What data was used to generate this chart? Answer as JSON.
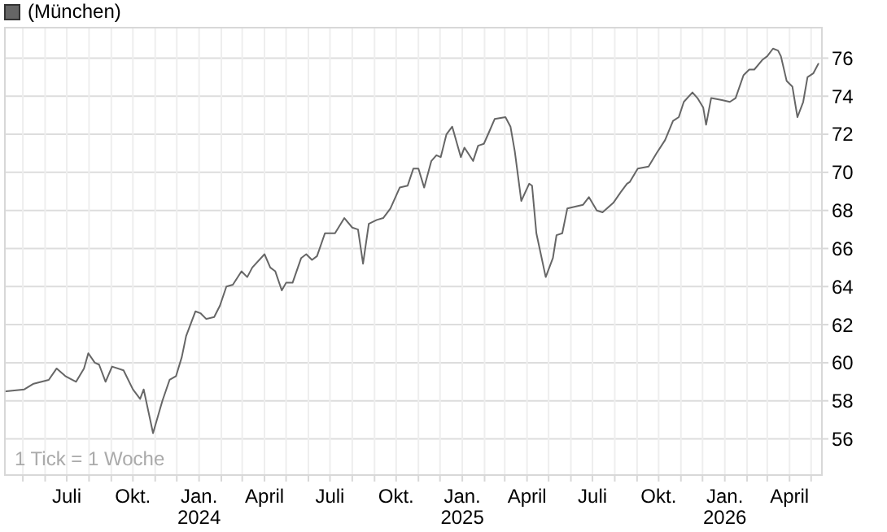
{
  "chart_data": {
    "type": "line",
    "legend": "top left",
    "grid": true,
    "marker": "none",
    "line_style": "solid",
    "annotations": [
      "1 Tick = 1 Woche"
    ],
    "xlim": [
      "2023-04-06",
      "2026-05-16"
    ],
    "ylim": [
      54.1,
      77.6
    ],
    "yticks": [
      56,
      58,
      60,
      62,
      64,
      66,
      68,
      70,
      72,
      74,
      76
    ],
    "xticks": [
      {
        "value": "2023-05-01",
        "label": null
      },
      {
        "value": "2023-06-01",
        "label": null
      },
      {
        "value": "2023-07-01",
        "label": "Juli"
      },
      {
        "value": "2023-08-01",
        "label": null
      },
      {
        "value": "2023-09-01",
        "label": null
      },
      {
        "value": "2023-10-01",
        "label": "Okt."
      },
      {
        "value": "2023-11-01",
        "label": null
      },
      {
        "value": "2023-12-01",
        "label": null
      },
      {
        "value": "2024-01-01",
        "label": "Jan.\n2024"
      },
      {
        "value": "2024-02-01",
        "label": null
      },
      {
        "value": "2024-03-01",
        "label": null
      },
      {
        "value": "2024-04-01",
        "label": "April"
      },
      {
        "value": "2024-05-01",
        "label": null
      },
      {
        "value": "2024-06-01",
        "label": null
      },
      {
        "value": "2024-07-01",
        "label": "Juli"
      },
      {
        "value": "2024-08-01",
        "label": null
      },
      {
        "value": "2024-09-01",
        "label": null
      },
      {
        "value": "2024-10-01",
        "label": "Okt."
      },
      {
        "value": "2024-11-01",
        "label": null
      },
      {
        "value": "2024-12-01",
        "label": null
      },
      {
        "value": "2025-01-01",
        "label": "Jan.\n2025"
      },
      {
        "value": "2025-02-01",
        "label": null
      },
      {
        "value": "2025-03-01",
        "label": null
      },
      {
        "value": "2025-04-01",
        "label": "April"
      },
      {
        "value": "2025-05-01",
        "label": null
      },
      {
        "value": "2025-06-01",
        "label": null
      },
      {
        "value": "2025-07-01",
        "label": "Juli"
      },
      {
        "value": "2025-08-01",
        "label": null
      },
      {
        "value": "2025-09-01",
        "label": null
      },
      {
        "value": "2025-10-01",
        "label": "Okt."
      },
      {
        "value": "2025-11-01",
        "label": null
      },
      {
        "value": "2025-12-01",
        "label": null
      },
      {
        "value": "2026-01-01",
        "label": "Jan.\n2026"
      },
      {
        "value": "2026-02-01",
        "label": null
      },
      {
        "value": "2026-03-01",
        "label": null
      },
      {
        "value": "2026-04-01",
        "label": "April"
      },
      {
        "value": "2026-05-01",
        "label": null
      }
    ],
    "x": [
      "2023-04-08",
      "2023-05-03",
      "2023-05-16",
      "2023-06-06",
      "2023-06-17",
      "2023-06-29",
      "2023-07-14",
      "2023-07-25",
      "2023-07-31",
      "2023-08-09",
      "2023-08-15",
      "2023-08-24",
      "2023-09-02",
      "2023-09-18",
      "2023-10-01",
      "2023-10-11",
      "2023-10-16",
      "2023-10-29",
      "2023-11-11",
      "2023-11-21",
      "2023-11-30",
      "2023-12-08",
      "2023-12-14",
      "2023-12-27",
      "2024-01-03",
      "2024-01-11",
      "2024-01-22",
      "2024-01-30",
      "2024-02-08",
      "2024-02-17",
      "2024-02-29",
      "2024-03-08",
      "2024-03-15",
      "2024-04-01",
      "2024-04-09",
      "2024-04-16",
      "2024-04-25",
      "2024-05-01",
      "2024-05-10",
      "2024-05-22",
      "2024-05-29",
      "2024-06-06",
      "2024-06-13",
      "2024-06-24",
      "2024-07-08",
      "2024-07-21",
      "2024-08-01",
      "2024-08-09",
      "2024-08-16",
      "2024-08-24",
      "2024-09-04",
      "2024-09-13",
      "2024-09-23",
      "2024-10-06",
      "2024-10-17",
      "2024-10-25",
      "2024-11-01",
      "2024-11-09",
      "2024-11-19",
      "2024-11-26",
      "2024-12-02",
      "2024-12-10",
      "2024-12-18",
      "2024-12-30",
      "2025-01-04",
      "2025-01-16",
      "2025-01-23",
      "2025-01-31",
      "2025-02-07",
      "2025-02-15",
      "2025-03-02",
      "2025-03-09",
      "2025-03-15",
      "2025-03-24",
      "2025-04-04",
      "2025-04-08",
      "2025-04-14",
      "2025-04-27",
      "2025-05-07",
      "2025-05-12",
      "2025-05-20",
      "2025-05-27",
      "2025-06-07",
      "2025-06-18",
      "2025-06-26",
      "2025-07-07",
      "2025-07-15",
      "2025-07-30",
      "2025-08-10",
      "2025-08-18",
      "2025-08-22",
      "2025-09-02",
      "2025-09-17",
      "2025-09-28",
      "2025-10-10",
      "2025-10-21",
      "2025-10-29",
      "2025-11-05",
      "2025-11-17",
      "2025-11-24",
      "2025-12-02",
      "2025-12-06",
      "2025-12-13",
      "2025-12-28",
      "2026-01-08",
      "2026-01-16",
      "2026-01-27",
      "2026-02-04",
      "2026-02-11",
      "2026-02-22",
      "2026-03-01",
      "2026-03-09",
      "2026-03-16",
      "2026-03-20",
      "2026-03-28",
      "2026-04-05",
      "2026-04-12",
      "2026-04-20",
      "2026-04-26",
      "2026-05-04",
      "2026-05-11"
    ],
    "series": [
      {
        "name": "(München)",
        "color": "#666666",
        "values": [
          58.5,
          58.6,
          58.9,
          59.1,
          59.7,
          59.3,
          59.0,
          59.7,
          60.5,
          60.0,
          59.9,
          59.0,
          59.8,
          59.6,
          58.6,
          58.1,
          58.6,
          56.3,
          58.0,
          59.1,
          59.3,
          60.3,
          61.4,
          62.7,
          62.6,
          62.3,
          62.4,
          63.0,
          64.0,
          64.1,
          64.8,
          64.5,
          65.0,
          65.7,
          65.0,
          64.8,
          63.8,
          64.2,
          64.2,
          65.5,
          65.7,
          65.4,
          65.6,
          66.8,
          66.8,
          67.6,
          67.1,
          67.0,
          65.2,
          67.3,
          67.5,
          67.6,
          68.1,
          69.2,
          69.3,
          70.2,
          70.2,
          69.2,
          70.6,
          70.9,
          70.8,
          72.0,
          72.4,
          70.8,
          71.3,
          70.6,
          71.4,
          71.5,
          72.1,
          72.8,
          72.9,
          72.4,
          71.1,
          68.5,
          69.4,
          69.3,
          66.8,
          64.5,
          65.5,
          66.7,
          66.8,
          68.1,
          68.2,
          68.3,
          68.7,
          68.0,
          67.9,
          68.4,
          69.0,
          69.4,
          69.5,
          70.2,
          70.3,
          71.0,
          71.7,
          72.7,
          72.9,
          73.7,
          74.2,
          73.9,
          73.4,
          72.5,
          73.9,
          73.8,
          73.7,
          73.9,
          75.1,
          75.4,
          75.4,
          75.9,
          76.1,
          76.5,
          76.4,
          76.1,
          74.8,
          74.5,
          72.9,
          73.7,
          75.0,
          75.2,
          75.7
        ]
      }
    ]
  }
}
